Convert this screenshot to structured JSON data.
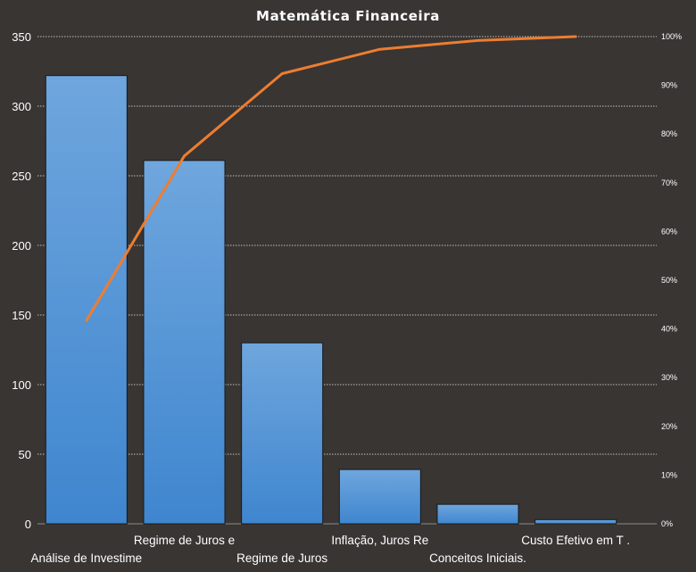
{
  "chart_data": {
    "type": "bar",
    "title": "Matemática  Financeira",
    "categories": [
      "Análise de Investime",
      "Regime de Juros e",
      "Regime de Juros",
      "Inflação, Juros Re",
      "Conceitos Iniciais.",
      "Custo Efetivo em T ."
    ],
    "series": [
      {
        "type": "bar",
        "values": [
          322,
          261,
          130,
          39,
          14,
          3
        ]
      },
      {
        "type": "line",
        "axis": "right",
        "values": [
          41.7,
          75.5,
          92.4,
          97.4,
          99.2,
          100
        ]
      }
    ],
    "ylim": [
      0,
      350
    ],
    "yticks": [
      0,
      50,
      100,
      150,
      200,
      250,
      300,
      350
    ],
    "y2lim": [
      0,
      100
    ],
    "y2ticks": [
      "0%",
      "10%",
      "20%",
      "30%",
      "40%",
      "50%",
      "60%",
      "70%",
      "80%",
      "90%",
      "100%"
    ],
    "grid": true,
    "colors": {
      "background": "#383533",
      "bar": "#5b9bd5",
      "line": "#ed7d31",
      "grid": "#bfbfbf"
    }
  }
}
